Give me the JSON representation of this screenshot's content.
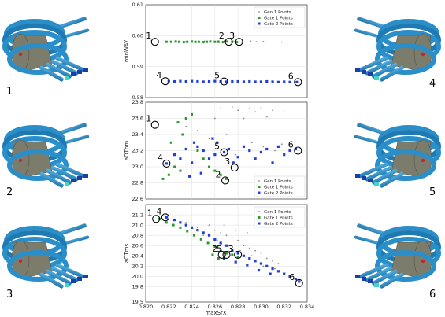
{
  "colors": {
    "gen1": "#8a8a8a",
    "gate1": "#2a9a2a",
    "gate2": "#1f3fd8",
    "pipe": "#2a8ec8",
    "core": "#8c8c7c"
  },
  "legend": [
    "Gen 1 Points",
    "Gate 1 Points",
    "Gate 2 Points"
  ],
  "side_labels": [
    "1",
    "2",
    "3",
    "4",
    "5",
    "6"
  ],
  "xlabel": "maxSrX",
  "chart_data": [
    {
      "type": "scatter",
      "ylabel": "minWAY",
      "xlim": [
        0.82,
        0.834
      ],
      "ylim": [
        0.58,
        0.61
      ],
      "yticks": [
        "0.61",
        "0.60",
        "0.59",
        "0.58"
      ],
      "legend_position": "top-right",
      "series": [
        {
          "name": "Gen 1 Points",
          "points": [
            [
              0.8235,
              0.5981
            ],
            [
              0.8251,
              0.5982
            ],
            [
              0.8268,
              0.5981
            ],
            [
              0.8283,
              0.5979
            ],
            [
              0.8296,
              0.598
            ],
            [
              0.8302,
              0.5981
            ],
            [
              0.8318,
              0.5979
            ],
            [
              0.8244,
              0.5979
            ],
            [
              0.8277,
              0.598
            ],
            [
              0.8291,
              0.5982
            ],
            [
              0.8263,
              0.5983
            ]
          ]
        },
        {
          "name": "Gate 1 Points",
          "points": [
            [
              0.8218,
              0.598
            ],
            [
              0.8222,
              0.598
            ],
            [
              0.8226,
              0.5981
            ],
            [
              0.8229,
              0.598
            ],
            [
              0.8233,
              0.5979
            ],
            [
              0.8236,
              0.598
            ],
            [
              0.824,
              0.5981
            ],
            [
              0.8243,
              0.598
            ],
            [
              0.8246,
              0.598
            ],
            [
              0.825,
              0.5979
            ],
            [
              0.8253,
              0.598
            ],
            [
              0.8256,
              0.5981
            ],
            [
              0.826,
              0.598
            ],
            [
              0.8263,
              0.598
            ],
            [
              0.8267,
              0.5979
            ],
            [
              0.827,
              0.5981
            ],
            [
              0.8275,
              0.598
            ],
            [
              0.8279,
              0.5979
            ]
          ]
        },
        {
          "name": "Gate 2 Points",
          "points": [
            [
              0.822,
              0.5853
            ],
            [
              0.8225,
              0.5852
            ],
            [
              0.823,
              0.5853
            ],
            [
              0.8235,
              0.5852
            ],
            [
              0.824,
              0.5853
            ],
            [
              0.8245,
              0.5852
            ],
            [
              0.825,
              0.5851
            ],
            [
              0.8255,
              0.5852
            ],
            [
              0.826,
              0.5853
            ],
            [
              0.8265,
              0.5852
            ],
            [
              0.827,
              0.5851
            ],
            [
              0.8275,
              0.5852
            ],
            [
              0.828,
              0.5852
            ],
            [
              0.8285,
              0.5851
            ],
            [
              0.829,
              0.5852
            ],
            [
              0.8295,
              0.5851
            ],
            [
              0.83,
              0.5851
            ],
            [
              0.8305,
              0.5852
            ],
            [
              0.831,
              0.5851
            ],
            [
              0.8315,
              0.585
            ],
            [
              0.832,
              0.5851
            ],
            [
              0.8325,
              0.585
            ],
            [
              0.8331,
              0.585
            ]
          ]
        }
      ],
      "callouts": [
        {
          "label": "1",
          "x": 0.8208,
          "y": 0.598
        },
        {
          "label": "2",
          "x": 0.8272,
          "y": 0.598
        },
        {
          "label": "3",
          "x": 0.8281,
          "y": 0.598
        },
        {
          "label": "4",
          "x": 0.8217,
          "y": 0.5853
        },
        {
          "label": "5",
          "x": 0.8268,
          "y": 0.5852
        },
        {
          "label": "6",
          "x": 0.8332,
          "y": 0.585
        }
      ]
    },
    {
      "type": "scatter",
      "ylabel": "aOTbm",
      "xlim": [
        0.82,
        0.834
      ],
      "ylim": [
        22.6,
        23.8
      ],
      "yticks": [
        "23.8",
        "23.6",
        "23.4",
        "23.2",
        "23.0",
        "22.8",
        "22.6"
      ],
      "legend_position": "bottom-right",
      "series": [
        {
          "name": "Gen 1 Points",
          "points": [
            [
              0.8265,
              23.72
            ],
            [
              0.8275,
              23.74
            ],
            [
              0.828,
              23.7
            ],
            [
              0.829,
              23.72
            ],
            [
              0.8295,
              23.68
            ],
            [
              0.83,
              23.73
            ],
            [
              0.831,
              23.7
            ],
            [
              0.832,
              23.68
            ],
            [
              0.826,
              23.6
            ],
            [
              0.8285,
              23.6
            ],
            [
              0.8305,
              23.62
            ],
            [
              0.827,
              23.4
            ],
            [
              0.8255,
              23.35
            ],
            [
              0.8292,
              23.3
            ],
            [
              0.8302,
              23.25
            ],
            [
              0.8312,
              23.2
            ],
            [
              0.8245,
              23.45
            ],
            [
              0.8235,
              23.5
            ],
            [
              0.8318,
              23.28
            ],
            [
              0.8278,
              23.15
            ]
          ]
        },
        {
          "name": "Gate 1 Points",
          "points": [
            [
              0.8215,
              22.85
            ],
            [
              0.822,
              22.9
            ],
            [
              0.8225,
              23.0
            ],
            [
              0.823,
              22.95
            ],
            [
              0.8222,
              23.3
            ],
            [
              0.8228,
              23.55
            ],
            [
              0.8235,
              23.6
            ],
            [
              0.824,
              23.65
            ],
            [
              0.8232,
              23.4
            ],
            [
              0.8245,
              23.2
            ],
            [
              0.825,
              23.1
            ],
            [
              0.8255,
              23.0
            ],
            [
              0.826,
              22.95
            ],
            [
              0.8265,
              22.9
            ],
            [
              0.827,
              22.85
            ]
          ]
        },
        {
          "name": "Gate 2 Points",
          "points": [
            [
              0.8218,
              23.04
            ],
            [
              0.8225,
              23.15
            ],
            [
              0.823,
              23.1
            ],
            [
              0.8235,
              23.22
            ],
            [
              0.824,
              23.05
            ],
            [
              0.8245,
              23.25
            ],
            [
              0.825,
              23.2
            ],
            [
              0.8255,
              23.1
            ],
            [
              0.826,
              23.15
            ],
            [
              0.8262,
              23.3
            ],
            [
              0.8268,
              23.18
            ],
            [
              0.8272,
              23.22
            ],
            [
              0.8276,
              23.05
            ],
            [
              0.828,
              23.12
            ],
            [
              0.8285,
              23.25
            ],
            [
              0.829,
              23.2
            ],
            [
              0.8295,
              23.1
            ],
            [
              0.83,
              23.18
            ],
            [
              0.8305,
              23.22
            ],
            [
              0.831,
              23.05
            ],
            [
              0.8315,
              23.25
            ],
            [
              0.832,
              23.15
            ],
            [
              0.8325,
              23.2
            ],
            [
              0.833,
              23.22
            ],
            [
              0.8238,
              22.88
            ],
            [
              0.8248,
              22.92
            ],
            [
              0.8258,
              23.35
            ],
            [
              0.8242,
              23.3
            ]
          ]
        }
      ],
      "callouts": [
        {
          "label": "1",
          "x": 0.8208,
          "y": 23.52
        },
        {
          "label": "2",
          "x": 0.8269,
          "y": 22.83
        },
        {
          "label": "3",
          "x": 0.8277,
          "y": 22.99
        },
        {
          "label": "4",
          "x": 0.8218,
          "y": 23.04
        },
        {
          "label": "5",
          "x": 0.8268,
          "y": 23.18
        },
        {
          "label": "6",
          "x": 0.8332,
          "y": 23.2
        }
      ]
    },
    {
      "type": "scatter",
      "ylabel": "aOTms",
      "xlim": [
        0.82,
        0.834
      ],
      "ylim": [
        19.5,
        21.4
      ],
      "yticks": [
        "21.2",
        "21.0",
        "20.8",
        "20.6",
        "20.4",
        "20.2",
        "20.0",
        "19.8",
        "19.5"
      ],
      "xticks": [
        "0.820",
        "0.822",
        "0.824",
        "0.826",
        "0.828",
        "0.830",
        "0.832",
        "0.834"
      ],
      "legend_position": "top-right",
      "series": [
        {
          "name": "Gen 1 Points",
          "points": [
            [
              0.8235,
              21.05
            ],
            [
              0.8245,
              20.95
            ],
            [
              0.8255,
              21.0
            ],
            [
              0.826,
              20.9
            ],
            [
              0.8265,
              20.85
            ],
            [
              0.827,
              20.8
            ],
            [
              0.8275,
              20.75
            ],
            [
              0.828,
              20.7
            ],
            [
              0.8285,
              20.6
            ],
            [
              0.829,
              20.55
            ],
            [
              0.8295,
              20.5
            ],
            [
              0.83,
              20.45
            ],
            [
              0.8305,
              20.35
            ],
            [
              0.831,
              20.3
            ],
            [
              0.8315,
              20.25
            ],
            [
              0.825,
              20.8
            ],
            [
              0.8262,
              20.7
            ],
            [
              0.8272,
              20.6
            ],
            [
              0.8282,
              20.5
            ],
            [
              0.8292,
              20.4
            ],
            [
              0.8302,
              20.2
            ],
            [
              0.8312,
              20.15
            ],
            [
              0.8268,
              21.0
            ],
            [
              0.8278,
              20.9
            ],
            [
              0.8288,
              20.85
            ]
          ]
        },
        {
          "name": "Gate 1 Points",
          "points": [
            [
              0.8212,
              21.12
            ],
            [
              0.8218,
              21.05
            ],
            [
              0.8224,
              21.0
            ],
            [
              0.823,
              20.95
            ],
            [
              0.8236,
              20.88
            ],
            [
              0.8242,
              20.8
            ],
            [
              0.8248,
              20.72
            ],
            [
              0.8254,
              20.65
            ],
            [
              0.826,
              20.58
            ],
            [
              0.8265,
              20.5
            ],
            [
              0.827,
              20.45
            ],
            [
              0.8275,
              20.42
            ],
            [
              0.828,
              20.38
            ],
            [
              0.8258,
              20.42
            ],
            [
              0.8263,
              20.35
            ]
          ]
        },
        {
          "name": "Gate 2 Points",
          "points": [
            [
              0.8218,
              21.15
            ],
            [
              0.8225,
              21.1
            ],
            [
              0.823,
              21.05
            ],
            [
              0.8235,
              21.0
            ],
            [
              0.824,
              20.95
            ],
            [
              0.8245,
              20.9
            ],
            [
              0.825,
              20.85
            ],
            [
              0.8255,
              20.8
            ],
            [
              0.826,
              20.72
            ],
            [
              0.8265,
              20.65
            ],
            [
              0.827,
              20.6
            ],
            [
              0.8275,
              20.5
            ],
            [
              0.828,
              20.45
            ],
            [
              0.8285,
              20.4
            ],
            [
              0.829,
              20.35
            ],
            [
              0.8295,
              20.3
            ],
            [
              0.83,
              20.25
            ],
            [
              0.8305,
              20.2
            ],
            [
              0.831,
              20.15
            ],
            [
              0.8315,
              20.1
            ],
            [
              0.832,
              20.05
            ],
            [
              0.8325,
              20.0
            ],
            [
              0.833,
              19.95
            ],
            [
              0.8333,
              19.9
            ],
            [
              0.8268,
              20.35
            ],
            [
              0.8278,
              20.28
            ],
            [
              0.8288,
              20.22
            ],
            [
              0.8298,
              20.12
            ],
            [
              0.8308,
              20.05
            ]
          ]
        }
      ],
      "callouts": [
        {
          "label": "1",
          "x": 0.8209,
          "y": 21.12
        },
        {
          "label": "2",
          "x": 0.8266,
          "y": 20.42
        },
        {
          "label": "3",
          "x": 0.828,
          "y": 20.42
        },
        {
          "label": "4",
          "x": 0.8217,
          "y": 21.15
        },
        {
          "label": "5",
          "x": 0.827,
          "y": 20.42
        },
        {
          "label": "6",
          "x": 0.8333,
          "y": 19.87
        }
      ]
    }
  ]
}
